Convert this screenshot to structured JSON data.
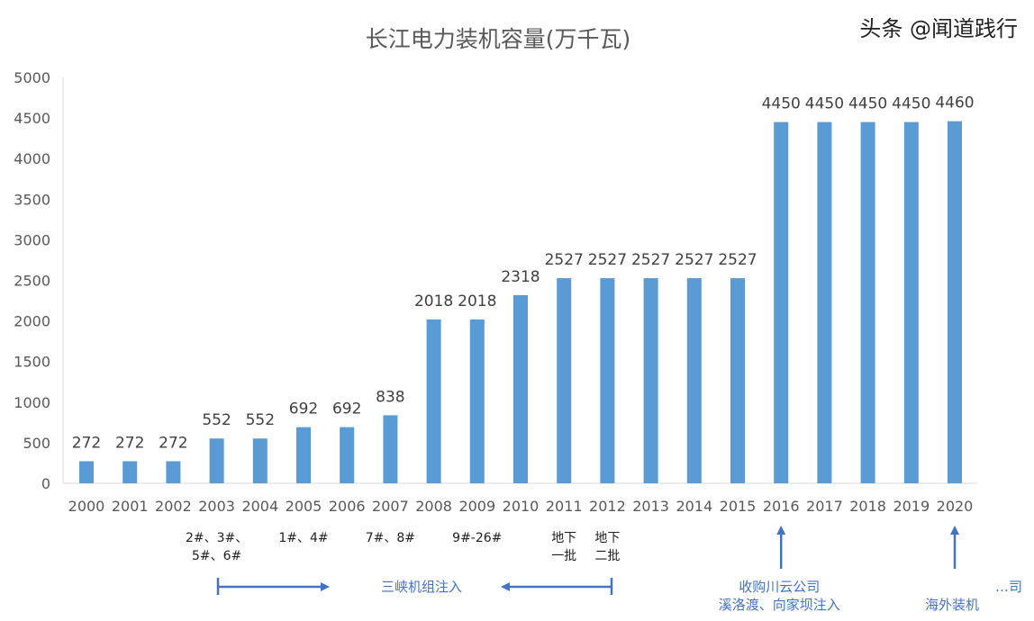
{
  "chart_data": {
    "type": "bar",
    "title": "长江电力装机容量(万千瓦)",
    "categories": [
      "2000",
      "2001",
      "2002",
      "2003",
      "2004",
      "2005",
      "2006",
      "2007",
      "2008",
      "2009",
      "2010",
      "2011",
      "2012",
      "2013",
      "2014",
      "2015",
      "2016",
      "2017",
      "2018",
      "2019",
      "2020"
    ],
    "values": [
      272,
      272,
      272,
      552,
      552,
      692,
      692,
      838,
      2018,
      2018,
      2318,
      2527,
      2527,
      2527,
      2527,
      2527,
      4450,
      4450,
      4450,
      4450,
      4460
    ],
    "ylim": [
      0,
      5000
    ],
    "yticks": [
      0,
      500,
      1000,
      1500,
      2000,
      2500,
      3000,
      3500,
      4000,
      4500,
      5000
    ],
    "grid": false,
    "bar_color": "#5B9BD5",
    "annotation_color": "#4472C4",
    "annotations": [
      {
        "category": "2003",
        "lines": [
          "2#、3#、",
          "5#、6#"
        ]
      },
      {
        "category": "2005",
        "lines": [
          "1#、4#"
        ]
      },
      {
        "category": "2007",
        "lines": [
          "7#、8#"
        ]
      },
      {
        "category": "2009",
        "lines": [
          "9#-26#"
        ]
      },
      {
        "category": "2011",
        "lines": [
          "地下",
          "一批"
        ]
      },
      {
        "category": "2012",
        "lines": [
          "地下",
          "二批"
        ]
      }
    ],
    "range_label": "三峡机组注入",
    "callouts": [
      {
        "category": "2016",
        "lines": [
          "收购川云公司",
          "溪洛渡、向家坝注入"
        ]
      },
      {
        "category": "2020",
        "lines": [
          "…司",
          "海外装机"
        ]
      }
    ]
  },
  "watermark": "头条 @闻道践行"
}
